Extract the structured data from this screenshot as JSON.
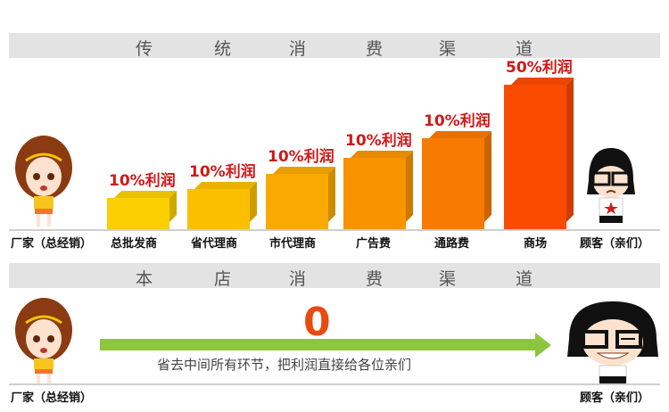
{
  "traditional": {
    "title_chars": [
      "传",
      "统",
      "消",
      "费",
      "渠",
      "道"
    ],
    "manufacturer": "厂家（总经销）",
    "customer": "顾客（亲们）",
    "stages": [
      {
        "name": "总批发商",
        "profit": "10%利润",
        "color": "#fbcf00"
      },
      {
        "name": "省代理商",
        "profit": "10%利润",
        "color": "#fbbf00"
      },
      {
        "name": "市代理商",
        "profit": "10%利润",
        "color": "#f9a900"
      },
      {
        "name": "广告费",
        "profit": "10%利润",
        "color": "#f99300"
      },
      {
        "name": "通路费",
        "profit": "10%利润",
        "color": "#f87a00"
      },
      {
        "name": "商场",
        "profit": "50%利润",
        "color": "#fa4b00"
      }
    ]
  },
  "store": {
    "title_chars": [
      "本",
      "店",
      "消",
      "费",
      "渠",
      "道"
    ],
    "middle_value": "0",
    "note": "省去中间所有环节，把利润直接给各位亲们",
    "manufacturer": "厂家（总经销）",
    "customer": "顾客（亲们）",
    "arrow_color": "#8cc63f"
  }
}
